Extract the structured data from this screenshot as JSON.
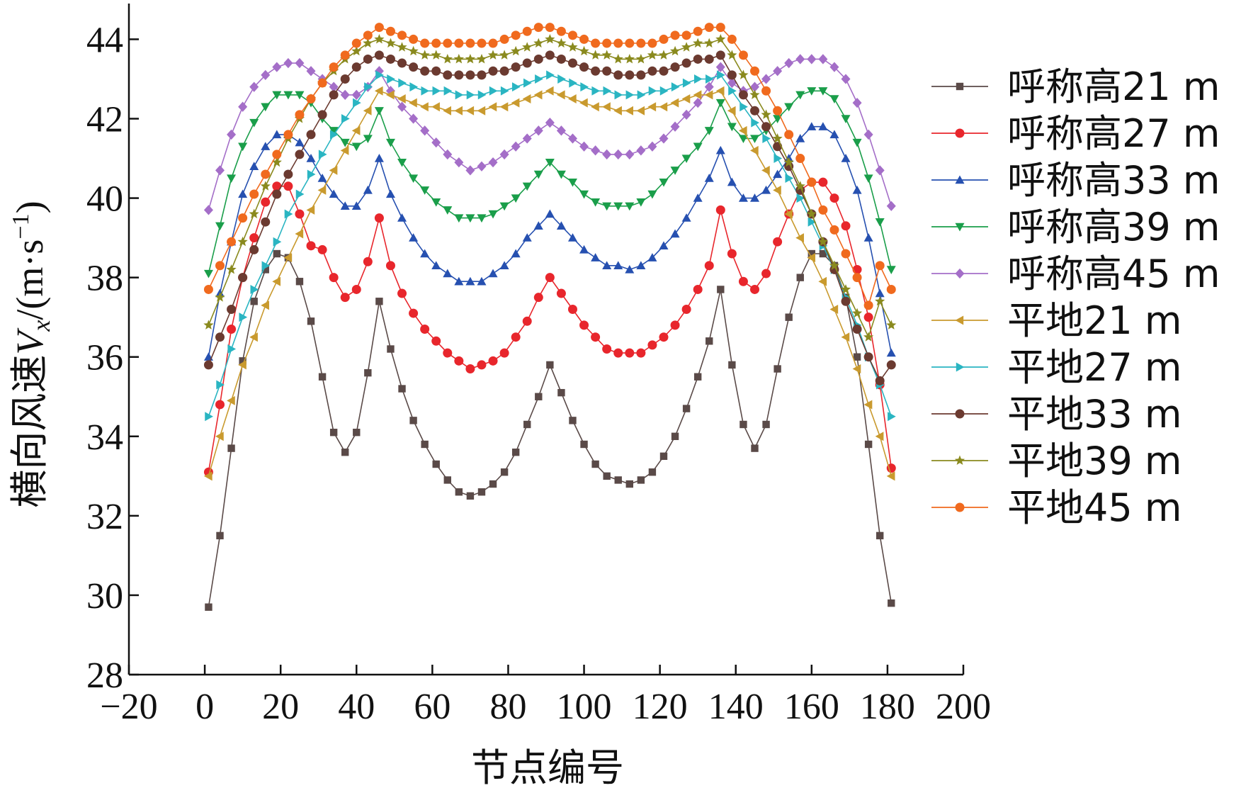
{
  "chart_data": {
    "type": "line",
    "xlabel": "节点编号",
    "ylabel": {
      "prefix": "横向风速",
      "var": "V",
      "sub": "x",
      "unit_open": "/(m·s",
      "unit_sup": "−1",
      "unit_close": ")"
    },
    "xlim": [
      -20,
      200
    ],
    "ylim": [
      28,
      44.9
    ],
    "x_ticks": [
      -20,
      0,
      20,
      40,
      60,
      80,
      100,
      120,
      140,
      160,
      180,
      200
    ],
    "x_tick_labels": [
      "−20",
      "0",
      "20",
      "40",
      "60",
      "80",
      "100",
      "120",
      "140",
      "160",
      "180",
      "200"
    ],
    "y_ticks": [
      28,
      30,
      32,
      34,
      36,
      38,
      40,
      42,
      44
    ],
    "y_tick_labels": [
      "28",
      "30",
      "32",
      "34",
      "36",
      "38",
      "40",
      "42",
      "44"
    ],
    "grid": false,
    "legend_position": "right",
    "x": [
      1,
      4,
      7,
      10,
      13,
      16,
      19,
      22,
      25,
      28,
      31,
      34,
      37,
      40,
      43,
      46,
      49,
      52,
      55,
      58,
      61,
      64,
      67,
      70,
      73,
      76,
      79,
      82,
      85,
      88,
      91,
      94,
      97,
      100,
      103,
      106,
      109,
      112,
      115,
      118,
      121,
      124,
      127,
      130,
      133,
      136,
      139,
      142,
      145,
      148,
      151,
      154,
      157,
      160,
      163,
      166,
      169,
      172,
      175,
      178,
      181
    ],
    "series": [
      {
        "name": "呼称高21 m",
        "color": "#5a4a48",
        "marker": "square",
        "values": [
          29.7,
          31.5,
          33.7,
          35.9,
          37.4,
          38.2,
          38.6,
          38.5,
          37.9,
          36.9,
          35.5,
          34.1,
          33.6,
          34.1,
          35.6,
          37.4,
          36.2,
          35.2,
          34.4,
          33.8,
          33.3,
          32.9,
          32.6,
          32.5,
          32.6,
          32.8,
          33.1,
          33.6,
          34.3,
          35.0,
          35.8,
          35.1,
          34.4,
          33.8,
          33.3,
          33.0,
          32.9,
          32.8,
          32.9,
          33.1,
          33.5,
          34.0,
          34.7,
          35.5,
          36.4,
          37.7,
          35.8,
          34.3,
          33.7,
          34.3,
          35.7,
          37.0,
          38.0,
          38.6,
          38.6,
          38.3,
          37.5,
          36.0,
          33.8,
          31.5,
          29.8
        ]
      },
      {
        "name": "呼称高27 m",
        "color": "#e8262c",
        "marker": "circle",
        "values": [
          33.1,
          34.8,
          36.7,
          38.0,
          39.0,
          39.9,
          40.3,
          40.3,
          39.6,
          38.8,
          38.7,
          38.0,
          37.5,
          37.7,
          38.4,
          39.5,
          38.3,
          37.6,
          37.1,
          36.7,
          36.4,
          36.1,
          35.9,
          35.7,
          35.8,
          35.9,
          36.1,
          36.5,
          36.9,
          37.5,
          38.0,
          37.6,
          37.2,
          36.8,
          36.5,
          36.2,
          36.1,
          36.1,
          36.1,
          36.3,
          36.5,
          36.8,
          37.2,
          37.7,
          38.3,
          39.7,
          38.6,
          37.9,
          37.7,
          38.1,
          38.9,
          39.6,
          40.2,
          40.4,
          40.4,
          40.0,
          39.3,
          38.2,
          37.0,
          35.3,
          33.2
        ]
      },
      {
        "name": "呼称高33 m",
        "color": "#2650b0",
        "marker": "triangle-up",
        "values": [
          36.0,
          37.6,
          38.9,
          40.1,
          40.8,
          41.3,
          41.6,
          41.6,
          41.4,
          41.0,
          40.5,
          40.1,
          39.8,
          39.8,
          40.2,
          41.0,
          40.1,
          39.5,
          39.0,
          38.6,
          38.3,
          38.1,
          37.9,
          37.9,
          37.9,
          38.1,
          38.3,
          38.6,
          39.0,
          39.3,
          39.6,
          39.3,
          39.0,
          38.7,
          38.5,
          38.3,
          38.3,
          38.2,
          38.3,
          38.5,
          38.8,
          39.1,
          39.5,
          40.0,
          40.5,
          41.2,
          40.4,
          40.0,
          40.0,
          40.2,
          40.6,
          41.0,
          41.5,
          41.8,
          41.8,
          41.6,
          41.0,
          40.2,
          39.0,
          37.6,
          36.1
        ]
      },
      {
        "name": "呼称高39 m",
        "color": "#1a9e4a",
        "marker": "triangle-down",
        "values": [
          38.1,
          39.3,
          40.5,
          41.3,
          41.9,
          42.3,
          42.6,
          42.6,
          42.6,
          42.4,
          42.0,
          41.7,
          41.4,
          41.3,
          41.5,
          42.2,
          41.4,
          40.9,
          40.5,
          40.2,
          39.9,
          39.7,
          39.5,
          39.5,
          39.5,
          39.6,
          39.8,
          40.0,
          40.3,
          40.6,
          40.9,
          40.6,
          40.4,
          40.1,
          39.9,
          39.8,
          39.8,
          39.8,
          39.9,
          40.1,
          40.4,
          40.7,
          41.0,
          41.3,
          41.7,
          42.4,
          41.8,
          41.5,
          41.5,
          41.7,
          42.0,
          42.3,
          42.6,
          42.7,
          42.7,
          42.5,
          42.0,
          41.4,
          40.5,
          39.4,
          38.2
        ]
      },
      {
        "name": "呼称高45 m",
        "color": "#a46ec8",
        "marker": "diamond",
        "values": [
          39.7,
          40.7,
          41.6,
          42.3,
          42.8,
          43.1,
          43.3,
          43.4,
          43.4,
          43.2,
          43.0,
          42.8,
          42.6,
          42.6,
          42.8,
          43.2,
          42.7,
          42.3,
          42.0,
          41.7,
          41.4,
          41.1,
          40.9,
          40.7,
          40.8,
          40.9,
          41.1,
          41.3,
          41.5,
          41.7,
          41.9,
          41.7,
          41.5,
          41.3,
          41.2,
          41.1,
          41.1,
          41.1,
          41.2,
          41.3,
          41.5,
          41.8,
          42.1,
          42.4,
          42.8,
          43.3,
          42.9,
          42.7,
          42.8,
          43.0,
          43.2,
          43.4,
          43.5,
          43.5,
          43.5,
          43.3,
          43.0,
          42.4,
          41.6,
          40.7,
          39.8
        ]
      },
      {
        "name": "平地21 m",
        "color": "#c99a2e",
        "marker": "triangle-left",
        "values": [
          33.0,
          34.0,
          34.9,
          35.8,
          36.5,
          37.3,
          37.9,
          38.5,
          39.1,
          39.7,
          40.2,
          40.7,
          41.2,
          41.7,
          42.2,
          42.7,
          42.6,
          42.5,
          42.4,
          42.3,
          42.3,
          42.2,
          42.2,
          42.2,
          42.2,
          42.3,
          42.3,
          42.4,
          42.5,
          42.6,
          42.7,
          42.6,
          42.5,
          42.4,
          42.3,
          42.3,
          42.2,
          42.2,
          42.2,
          42.3,
          42.3,
          42.4,
          42.5,
          42.6,
          42.6,
          42.7,
          42.2,
          41.7,
          41.2,
          40.7,
          40.2,
          39.6,
          39.0,
          38.5,
          37.9,
          37.2,
          36.5,
          35.7,
          34.8,
          34.0,
          33.0
        ]
      },
      {
        "name": "平地27 m",
        "color": "#2ab5c2",
        "marker": "triangle-right",
        "values": [
          34.5,
          35.3,
          36.2,
          37.0,
          37.7,
          38.3,
          38.9,
          39.6,
          40.1,
          40.6,
          41.1,
          41.6,
          42.0,
          42.4,
          42.8,
          43.1,
          43.0,
          42.9,
          42.8,
          42.7,
          42.7,
          42.7,
          42.6,
          42.6,
          42.6,
          42.7,
          42.7,
          42.8,
          42.9,
          43.0,
          43.1,
          43.0,
          42.9,
          42.8,
          42.7,
          42.7,
          42.6,
          42.6,
          42.6,
          42.7,
          42.7,
          42.8,
          42.9,
          43.0,
          43.0,
          43.1,
          42.7,
          42.3,
          41.9,
          41.5,
          41.0,
          40.5,
          40.0,
          39.4,
          38.8,
          38.2,
          37.5,
          36.8,
          36.0,
          35.3,
          34.5
        ]
      },
      {
        "name": "平地33 m",
        "color": "#6b3a30",
        "marker": "circle",
        "values": [
          35.8,
          36.5,
          37.2,
          38.0,
          38.7,
          39.4,
          40.1,
          40.6,
          41.1,
          41.6,
          42.1,
          42.6,
          43.0,
          43.3,
          43.5,
          43.6,
          43.5,
          43.4,
          43.3,
          43.2,
          43.2,
          43.1,
          43.1,
          43.1,
          43.1,
          43.2,
          43.2,
          43.3,
          43.4,
          43.5,
          43.6,
          43.5,
          43.4,
          43.3,
          43.2,
          43.2,
          43.1,
          43.1,
          43.1,
          43.2,
          43.2,
          43.3,
          43.4,
          43.5,
          43.5,
          43.6,
          43.1,
          42.6,
          42.2,
          41.8,
          41.3,
          40.8,
          40.2,
          39.6,
          38.9,
          38.2,
          37.4,
          36.7,
          36.0,
          35.4,
          35.8
        ]
      },
      {
        "name": "平地39 m",
        "color": "#8a8a1e",
        "marker": "star",
        "values": [
          36.8,
          37.5,
          38.2,
          38.9,
          39.6,
          40.3,
          40.9,
          41.5,
          42.0,
          42.5,
          42.9,
          43.2,
          43.5,
          43.7,
          43.9,
          44.0,
          43.9,
          43.8,
          43.7,
          43.6,
          43.6,
          43.5,
          43.5,
          43.5,
          43.5,
          43.6,
          43.6,
          43.7,
          43.8,
          43.9,
          44.0,
          43.9,
          43.8,
          43.7,
          43.6,
          43.6,
          43.5,
          43.5,
          43.5,
          43.6,
          43.6,
          43.7,
          43.8,
          43.9,
          43.9,
          44.0,
          43.6,
          43.1,
          42.6,
          42.1,
          41.5,
          40.9,
          40.3,
          39.6,
          38.9,
          38.3,
          37.7,
          37.1,
          36.5,
          37.4,
          36.8
        ]
      },
      {
        "name": "平地45 m",
        "color": "#f06a1e",
        "marker": "circle",
        "values": [
          37.7,
          38.3,
          38.9,
          39.5,
          40.1,
          40.6,
          41.1,
          41.6,
          42.1,
          42.5,
          42.9,
          43.3,
          43.6,
          43.9,
          44.1,
          44.3,
          44.2,
          44.1,
          44.0,
          43.9,
          43.9,
          43.9,
          43.9,
          43.9,
          43.9,
          43.9,
          44.0,
          44.1,
          44.2,
          44.3,
          44.3,
          44.2,
          44.1,
          44.0,
          43.9,
          43.9,
          43.9,
          43.9,
          43.9,
          43.9,
          44.0,
          44.1,
          44.1,
          44.2,
          44.3,
          44.3,
          44.0,
          43.6,
          43.2,
          42.7,
          42.2,
          41.6,
          41.0,
          40.4,
          39.7,
          39.2,
          38.6,
          38.0,
          37.3,
          38.3,
          37.7
        ]
      }
    ]
  }
}
